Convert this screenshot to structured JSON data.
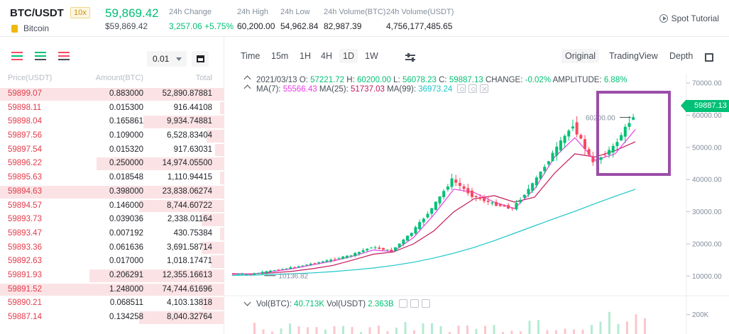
{
  "header": {
    "pair": "BTC/USDT",
    "leverage": "10x",
    "coin_name": "Bitcoin",
    "last_price": "59,869.42",
    "last_price_fiat": "$59,869.42",
    "stats": [
      {
        "label": "24h Change",
        "value": "3,257.06 +5.75%",
        "positive": true
      },
      {
        "label": "24h High",
        "value": "60,200.00"
      },
      {
        "label": "24h Low",
        "value": "54,962.84"
      },
      {
        "label": "24h Volume(BTC)",
        "value": "82,987.39"
      },
      {
        "label": "24h Volume(USDT)",
        "value": "4,756,177,485.65"
      }
    ],
    "tutorial": "Spot Tutorial"
  },
  "orderbook": {
    "precision": "0.01",
    "columns": {
      "price": "Price(USDT)",
      "amount": "Amount(BTC)",
      "total": "Total"
    },
    "rows": [
      {
        "price": "59899.07",
        "amount": "0.883000",
        "total": "52,890.87881",
        "depth": 1.0
      },
      {
        "price": "59898.11",
        "amount": "0.015300",
        "total": "916.44108",
        "depth": 0.02
      },
      {
        "price": "59898.04",
        "amount": "0.165861",
        "total": "9,934.74881",
        "depth": 0.36
      },
      {
        "price": "59897.56",
        "amount": "0.109000",
        "total": "6,528.83404",
        "depth": 0.08
      },
      {
        "price": "59897.54",
        "amount": "0.015320",
        "total": "917.63031",
        "depth": 0.04
      },
      {
        "price": "59896.22",
        "amount": "0.250000",
        "total": "14,974.05500",
        "depth": 0.57
      },
      {
        "price": "59895.63",
        "amount": "0.018548",
        "total": "1,110.94415",
        "depth": 0.02
      },
      {
        "price": "59894.63",
        "amount": "0.398000",
        "total": "23,838.06274",
        "depth": 1.0
      },
      {
        "price": "59894.57",
        "amount": "0.146000",
        "total": "8,744.60722",
        "depth": 0.38
      },
      {
        "price": "59893.73",
        "amount": "0.039036",
        "total": "2,338.01164",
        "depth": 0.1
      },
      {
        "price": "59893.47",
        "amount": "0.007192",
        "total": "430.75384",
        "depth": 0.02
      },
      {
        "price": "59893.36",
        "amount": "0.061636",
        "total": "3,691.58714",
        "depth": 0.1
      },
      {
        "price": "59892.63",
        "amount": "0.017000",
        "total": "1,018.17471",
        "depth": 0.06
      },
      {
        "price": "59891.93",
        "amount": "0.206291",
        "total": "12,355.16613",
        "depth": 0.6
      },
      {
        "price": "59891.52",
        "amount": "1.248000",
        "total": "74,744.61696",
        "depth": 1.0
      },
      {
        "price": "59890.21",
        "amount": "0.068511",
        "total": "4,103.13818",
        "depth": 0.1
      },
      {
        "price": "59887.14",
        "amount": "0.134258",
        "total": "8,040.32764",
        "depth": 0.38
      }
    ]
  },
  "chart": {
    "intervals": [
      "Time",
      "15m",
      "1H",
      "4H",
      "1D",
      "1W"
    ],
    "active_interval": "1D",
    "views": [
      "Original",
      "TradingView",
      "Depth"
    ],
    "active_view": "Original",
    "ohlc": {
      "date": "2021/03/13",
      "o_label": "O:",
      "o": "57221.72",
      "h_label": "H:",
      "h": "60200.00",
      "l_label": "L:",
      "l": "56078.23",
      "c_label": "C:",
      "c": "59887.13",
      "change_label": "CHANGE:",
      "change": "-0.02%",
      "amplitude_label": "AMPLITUDE:",
      "amplitude": "6.88%"
    },
    "ma": {
      "ma7_label": "MA(7):",
      "ma7": "55566.43",
      "ma25_label": "MA(25):",
      "ma25": "51737.03",
      "ma99_label": "MA(99):",
      "ma99": "36973.24"
    },
    "last_badge": "59887.13",
    "high_marker": "60200.00",
    "low_marker": "10136.82",
    "vol": {
      "btc_label": "Vol(BTC):",
      "btc": "40.713K",
      "usdt_label": "Vol(USDT)",
      "usdt": "2.363B"
    },
    "colors": {
      "up": "#02c076",
      "down": "#f84960",
      "ma7": "#e83ee3",
      "ma25": "#c2185b",
      "ma99": "#1ec5c9",
      "highlight": "#9b4ea8"
    }
  },
  "chart_data": {
    "type": "line",
    "title": "",
    "y_ticks": [
      10000,
      20000,
      30000,
      40000,
      50000,
      60000,
      70000
    ],
    "y_tick_labels": [
      "10000.00",
      "20000.00",
      "30000.00",
      "40000.00",
      "50000.00",
      "60000.00",
      "70000.00"
    ],
    "ylim": [
      5000,
      72000
    ],
    "series": [
      {
        "name": "MA(99)",
        "values": [
          10200,
          10300,
          10500,
          10700,
          11000,
          11400,
          11900,
          12500,
          13300,
          14300,
          15600,
          17100,
          18900,
          21000,
          23300,
          25600,
          27900,
          30100,
          32500,
          34800,
          36973
        ]
      },
      {
        "name": "MA(25)",
        "values": [
          10600,
          10700,
          11000,
          11500,
          12300,
          13300,
          15000,
          16800,
          17500,
          20000,
          24000,
          30000,
          34000,
          35000,
          33000,
          34500,
          42000,
          48000,
          47000,
          49000,
          51737
        ]
      },
      {
        "name": "MA(7)",
        "values": [
          10800,
          10600,
          11400,
          12300,
          13500,
          14700,
          16200,
          18100,
          17600,
          22000,
          29000,
          37000,
          36000,
          33000,
          31000,
          37000,
          47000,
          53000,
          46000,
          48000,
          55566
        ]
      }
    ],
    "close": [
      10700,
      10500,
      11600,
      12600,
      13800,
      15000,
      16500,
      19000,
      17800,
      23500,
      31000,
      40000,
      35000,
      32500,
      31000,
      38500,
      48000,
      57000,
      45000,
      50000,
      59887
    ],
    "vol_ylim": [
      0,
      300000
    ],
    "vol_tick_labels": [
      "200K"
    ]
  }
}
